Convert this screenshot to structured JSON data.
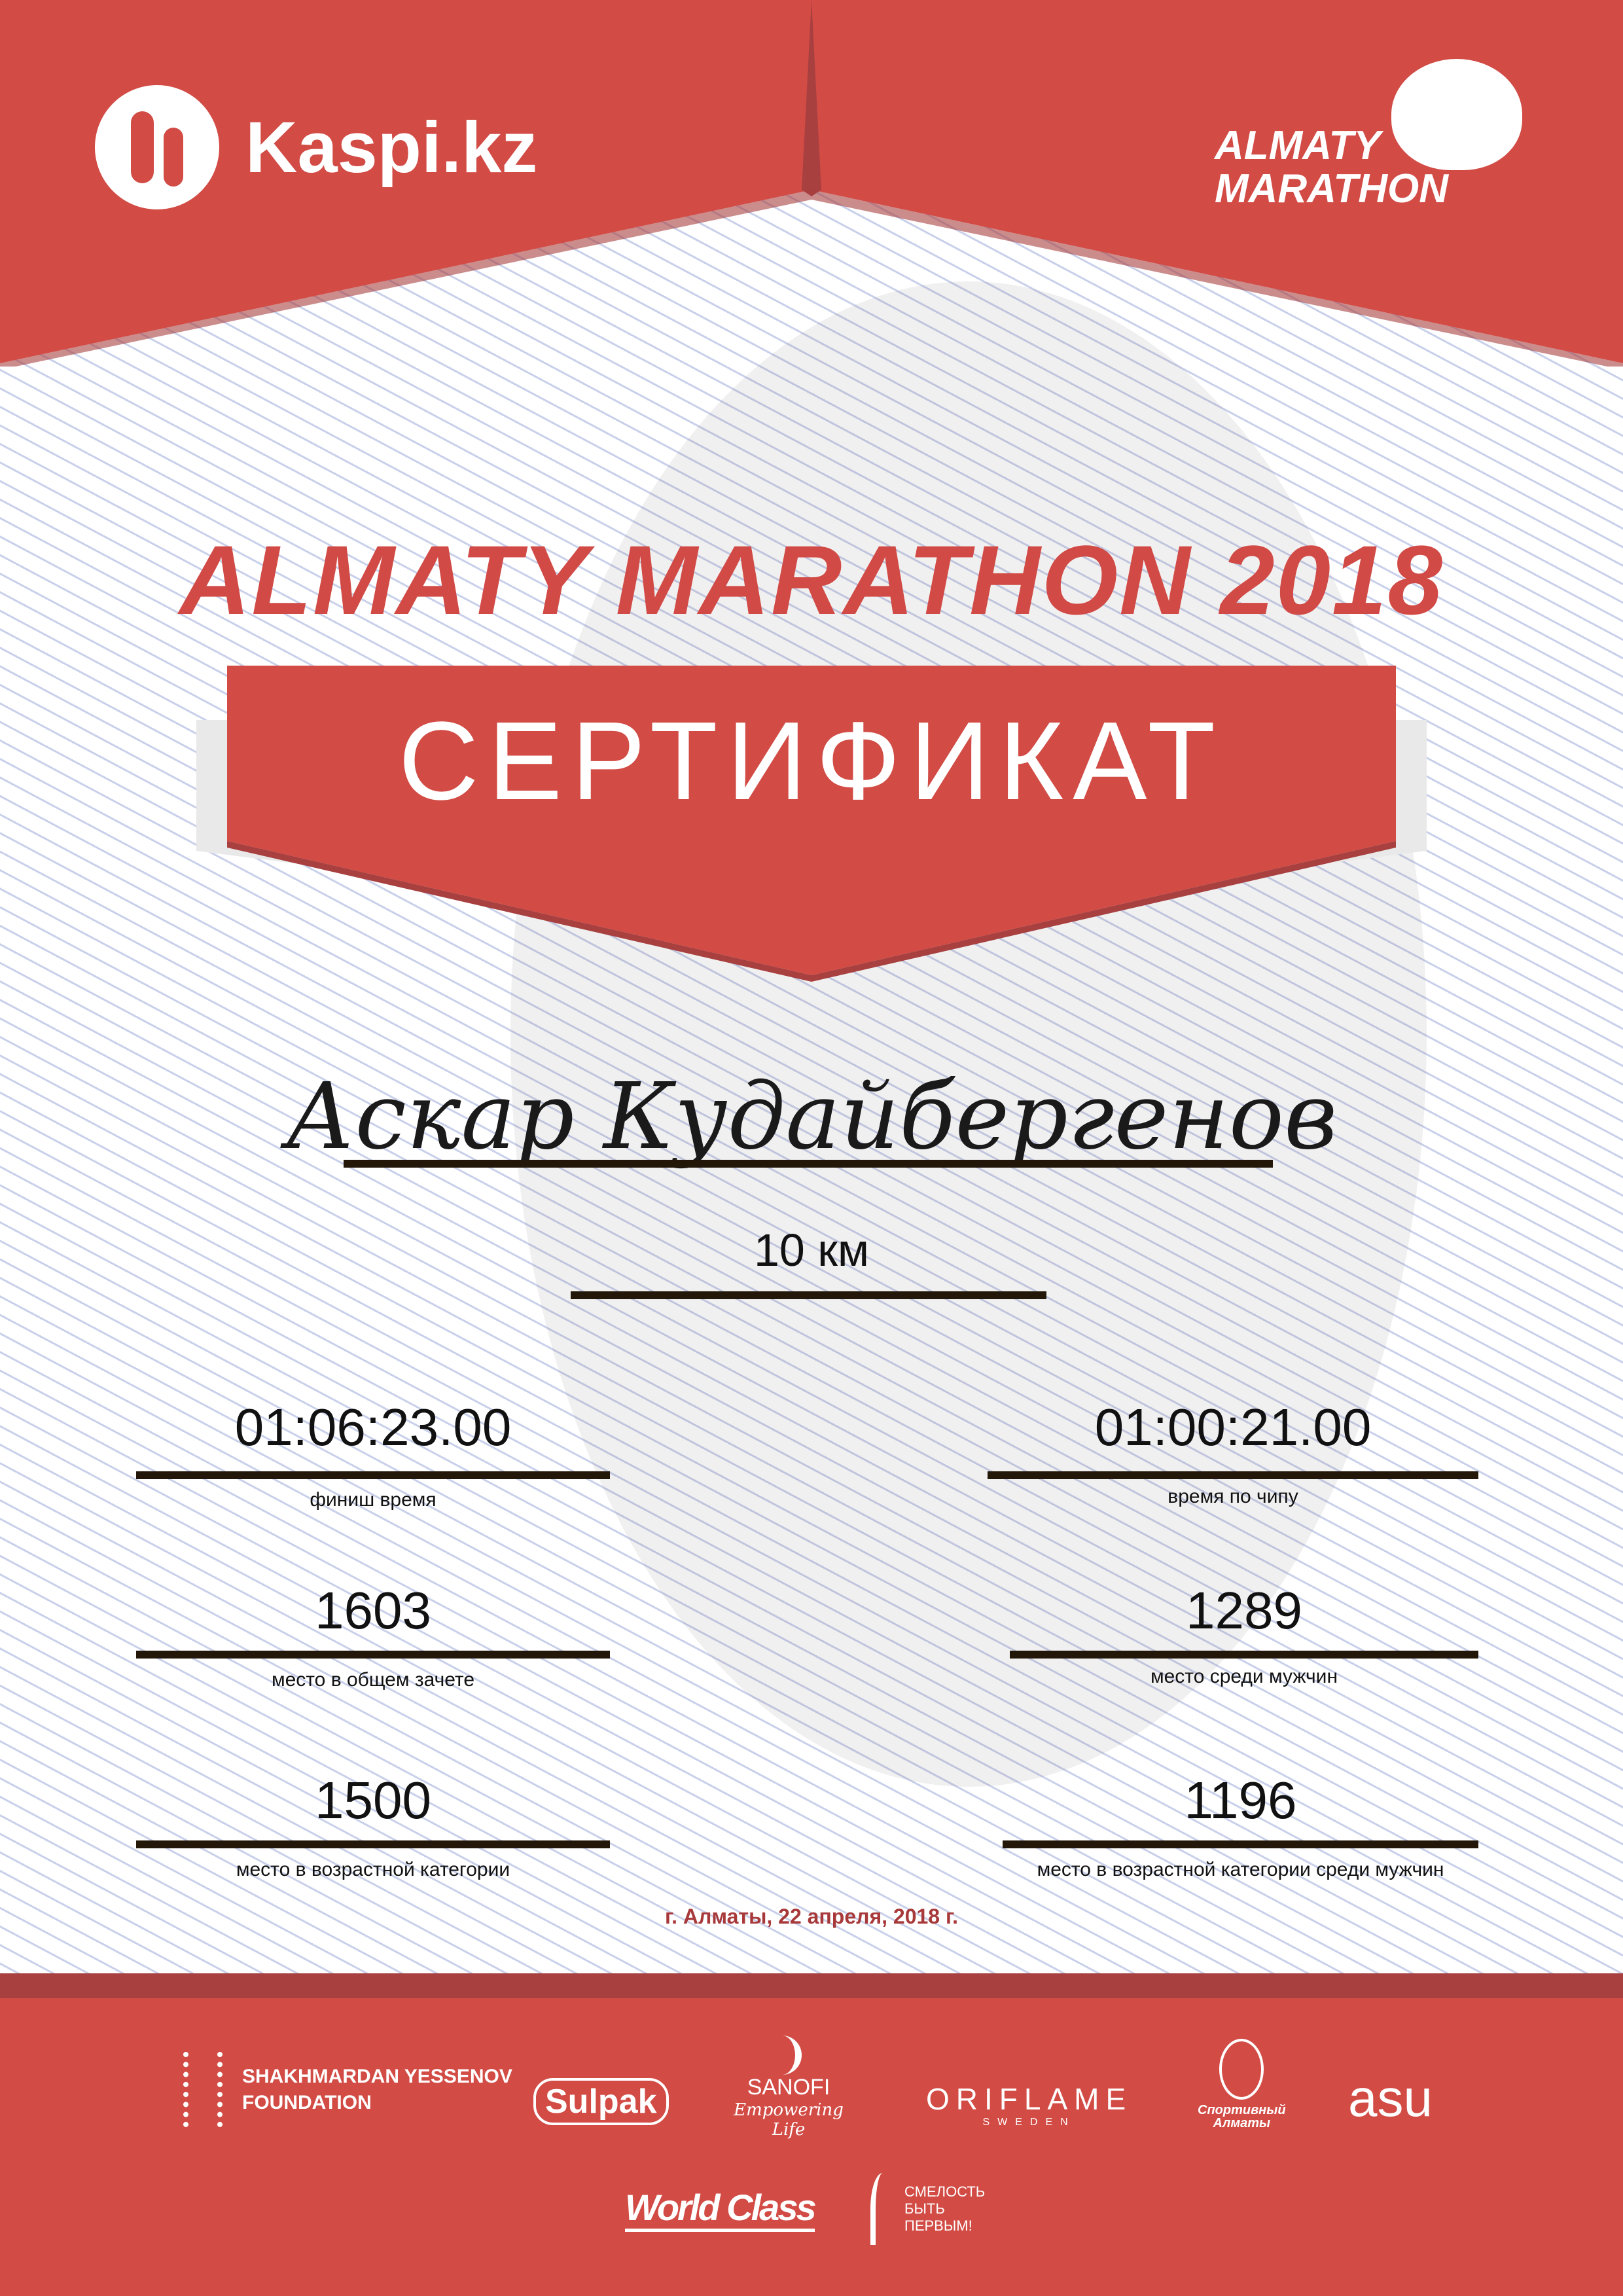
{
  "header": {
    "left_logo": "Kaspi.kz",
    "right_logo": [
      "ALMATY",
      "MARATHON"
    ]
  },
  "title": "ALMATY MARATHON 2018",
  "banner": "СЕРТИФИКАТ",
  "participant_name": "Аскар Кудайбергенов",
  "distance": "10 км",
  "results": [
    {
      "value": "01:06:23.00",
      "label": "финиш время"
    },
    {
      "value": "01:00:21.00",
      "label": "время по чипу"
    },
    {
      "value": "1603",
      "label": "место в общем зачете"
    },
    {
      "value": "1289",
      "label": "место среди мужчин"
    },
    {
      "value": "1500",
      "label": "место в возрастной категории"
    },
    {
      "value": "1196",
      "label": "место в возрастной категории среди мужчин"
    }
  ],
  "date": "г. Алматы, 22 апреля, 2018 г.",
  "sponsors": {
    "yessenov": [
      "SHAKHMARDAN YESSENOV",
      "FOUNDATION"
    ],
    "sulpak": "Sulpak",
    "sanofi": [
      "SANOFI",
      "Empowering Life"
    ],
    "oriflame": [
      "ORIFLAME",
      "SWEDEN"
    ],
    "sport_almaty": [
      "Спортивный",
      "Алматы"
    ],
    "asu": "asu",
    "worldclass": "World Class",
    "smelost": [
      "СМЕЛОСТЬ",
      "БЫТЬ",
      "ПЕРВЫМ!"
    ]
  },
  "colors": {
    "red": "#d24b45",
    "dark_red": "#a84040",
    "line": "#221709",
    "date": "#a8393a"
  }
}
